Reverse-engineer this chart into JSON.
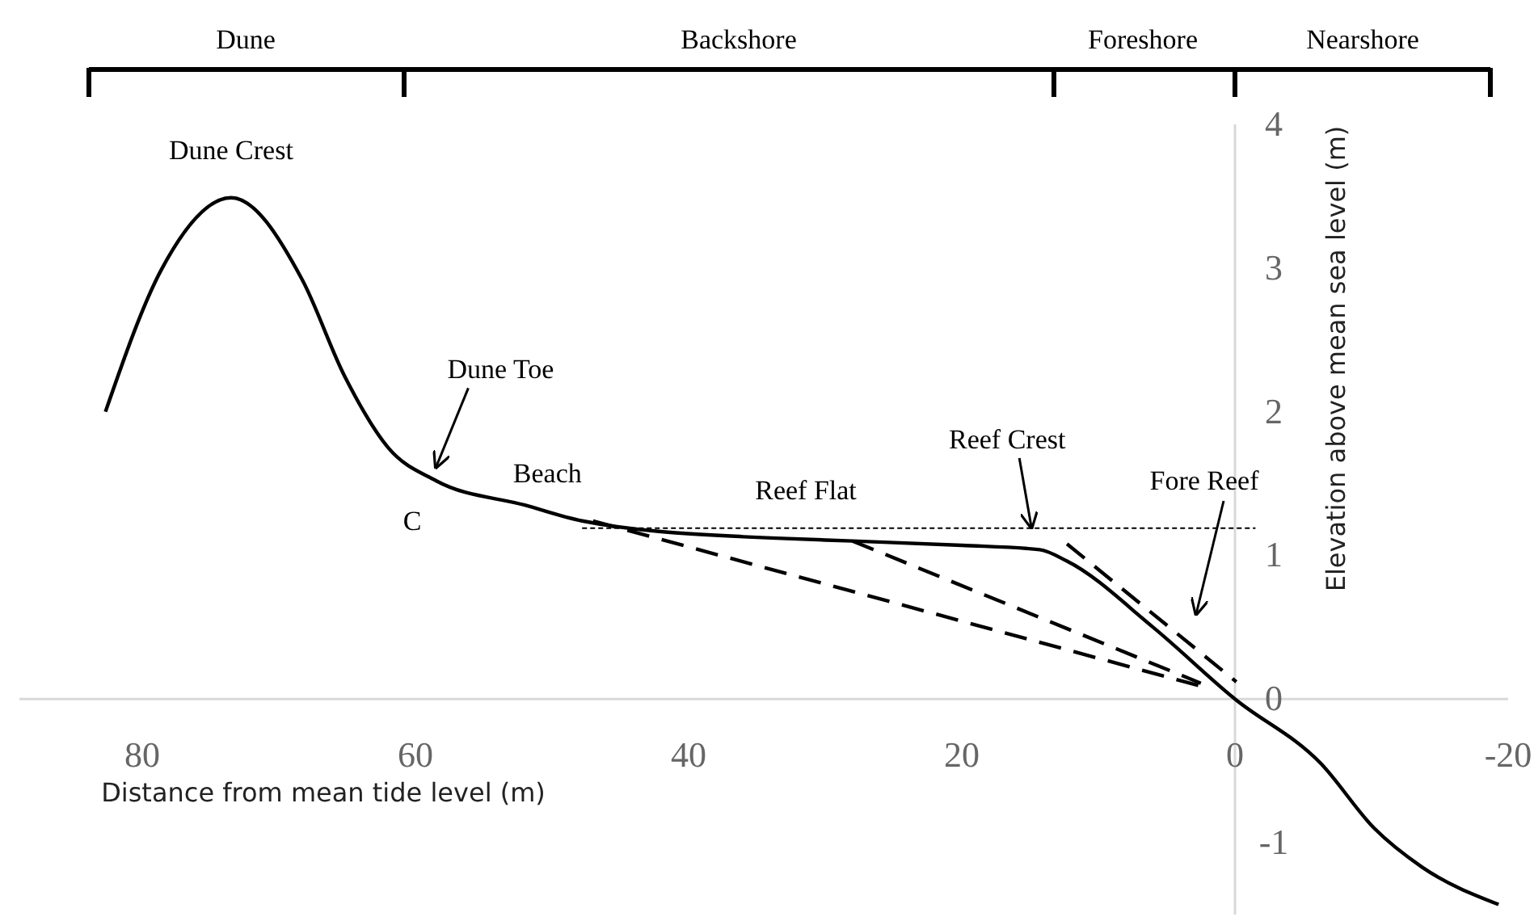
{
  "chart_data": {
    "type": "line",
    "xlabel": "Distance from mean tide level (m)",
    "ylabel": "Elevation above mean sea level (m)",
    "xlim": [
      89,
      -20
    ],
    "xticks": [
      80,
      60,
      40,
      20,
      0,
      -20
    ],
    "ylim": [
      -1.5,
      4
    ],
    "yticks": [
      -1,
      0,
      1,
      2,
      3,
      4
    ],
    "grid": false,
    "series": [
      {
        "color": "#000000",
        "line_style": "solid",
        "x": [
          82.7,
          78.6,
          73.5,
          68.3,
          65.2,
          62,
          58.5,
          52,
          47.8,
          36,
          33.6,
          28,
          20,
          14.3,
          12.3,
          6,
          0,
          -6.3,
          -10.2,
          -13.7,
          -19.3
        ],
        "values": [
          2.0,
          2.99,
          3.49,
          2.92,
          2.25,
          1.75,
          1.52,
          1.35,
          1.24,
          1.13,
          1.12,
          1.1,
          1.07,
          1.04,
          0.96,
          0.5,
          0,
          -0.45,
          -0.9,
          -1.17,
          -1.43
        ]
      },
      {
        "color": "#000000",
        "line_style": "dashed",
        "x": [
          47,
          2.5
        ],
        "values": [
          1.24,
          0.09
        ]
      },
      {
        "color": "#000000",
        "line_style": "dashed",
        "x": [
          28,
          2.5
        ],
        "values": [
          1.1,
          0.11
        ]
      },
      {
        "color": "#000000",
        "line_style": "dashed",
        "x": [
          12.3,
          -0.1
        ],
        "values": [
          1.08,
          0.12
        ]
      },
      {
        "color": "#000000",
        "line_style": "dotted",
        "x": [
          47.8,
          -1.5
        ],
        "values": [
          1.19,
          1.19
        ]
      }
    ],
    "annotations": [
      "Dune",
      "Backshore",
      "Foreshore",
      "Nearshore",
      {
        "text": "Dune Crest",
        "x": 73.5,
        "y": 3.49
      },
      {
        "text": "Dune Toe",
        "x": 58.5,
        "y": 1.58
      },
      "C",
      {
        "text": "Beach",
        "x": 52,
        "y": 1.35
      },
      {
        "text": "Reef Flat",
        "x": 30,
        "y": 1.12
      },
      {
        "text": "Reef Crest",
        "x": 14.9,
        "y": 1.16
      },
      "Fore Reef"
    ]
  }
}
